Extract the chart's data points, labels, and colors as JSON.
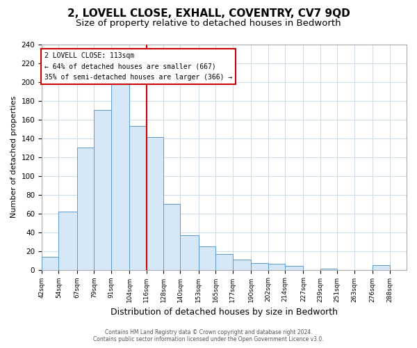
{
  "title": "2, LOVELL CLOSE, EXHALL, COVENTRY, CV7 9QD",
  "subtitle": "Size of property relative to detached houses in Bedworth",
  "xlabel": "Distribution of detached houses by size in Bedworth",
  "ylabel": "Number of detached properties",
  "bin_edges": [
    42,
    54,
    67,
    79,
    91,
    104,
    116,
    128,
    140,
    153,
    165,
    177,
    190,
    202,
    214,
    227,
    239,
    251,
    263,
    276,
    288
  ],
  "bar_heights": [
    14,
    62,
    130,
    170,
    200,
    153,
    141,
    70,
    37,
    25,
    17,
    11,
    7,
    6,
    4,
    0,
    1,
    0,
    0,
    5
  ],
  "bar_color": "#d6e8f7",
  "bar_edge_color": "#5b9bd5",
  "vline_x": 116,
  "vline_color": "#cc0000",
  "ylim": [
    0,
    240
  ],
  "yticks": [
    0,
    20,
    40,
    60,
    80,
    100,
    120,
    140,
    160,
    180,
    200,
    220,
    240
  ],
  "annotation_title": "2 LOVELL CLOSE: 113sqm",
  "annotation_line1": "← 64% of detached houses are smaller (667)",
  "annotation_line2": "35% of semi-detached houses are larger (366) →",
  "annotation_box_color": "#ffffff",
  "annotation_box_edge": "#cc0000",
  "footer_line1": "Contains HM Land Registry data © Crown copyright and database right 2024.",
  "footer_line2": "Contains public sector information licensed under the Open Government Licence v3.0.",
  "title_fontsize": 11,
  "subtitle_fontsize": 9.5,
  "xlabel_fontsize": 9,
  "ylabel_fontsize": 8,
  "tick_labels": [
    "42sqm",
    "54sqm",
    "67sqm",
    "79sqm",
    "91sqm",
    "104sqm",
    "116sqm",
    "128sqm",
    "140sqm",
    "153sqm",
    "165sqm",
    "177sqm",
    "190sqm",
    "202sqm",
    "214sqm",
    "227sqm",
    "239sqm",
    "251sqm",
    "263sqm",
    "276sqm",
    "288sqm"
  ],
  "background_color": "#ffffff",
  "plot_bg_color": "#ffffff",
  "grid_color": "#d0dce8"
}
